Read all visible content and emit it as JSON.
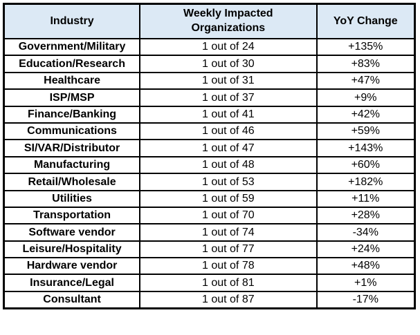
{
  "colors": {
    "header_background": "#dce9f5",
    "border": "#000000",
    "text": "#000000",
    "page_background": "#ffffff"
  },
  "chart_data": {
    "type": "table",
    "columns": [
      "Industry",
      "Weekly Impacted Organizations",
      "YoY Change"
    ],
    "rows": [
      [
        "Government/Military",
        "1 out of 24",
        "+135%"
      ],
      [
        "Education/Research",
        "1 out of 30",
        "+83%"
      ],
      [
        "Healthcare",
        "1 out of 31",
        "+47%"
      ],
      [
        "ISP/MSP",
        "1 out of 37",
        "+9%"
      ],
      [
        "Finance/Banking",
        "1 out of 41",
        "+42%"
      ],
      [
        "Communications",
        "1 out of 46",
        "+59%"
      ],
      [
        "SI/VAR/Distributor",
        "1 out of 47",
        "+143%"
      ],
      [
        "Manufacturing",
        "1 out of 48",
        "+60%"
      ],
      [
        "Retail/Wholesale",
        "1 out of 53",
        "+182%"
      ],
      [
        "Utilities",
        "1 out of 59",
        "+11%"
      ],
      [
        "Transportation",
        "1 out of 70",
        "+28%"
      ],
      [
        "Software vendor",
        "1 out of 74",
        "-34%"
      ],
      [
        "Leisure/Hospitality",
        "1 out of 77",
        "+24%"
      ],
      [
        "Hardware vendor",
        "1 out of 78",
        "+48%"
      ],
      [
        "Insurance/Legal",
        "1 out of 81",
        "+1%"
      ],
      [
        "Consultant",
        "1 out of 87",
        "-17%"
      ]
    ]
  }
}
